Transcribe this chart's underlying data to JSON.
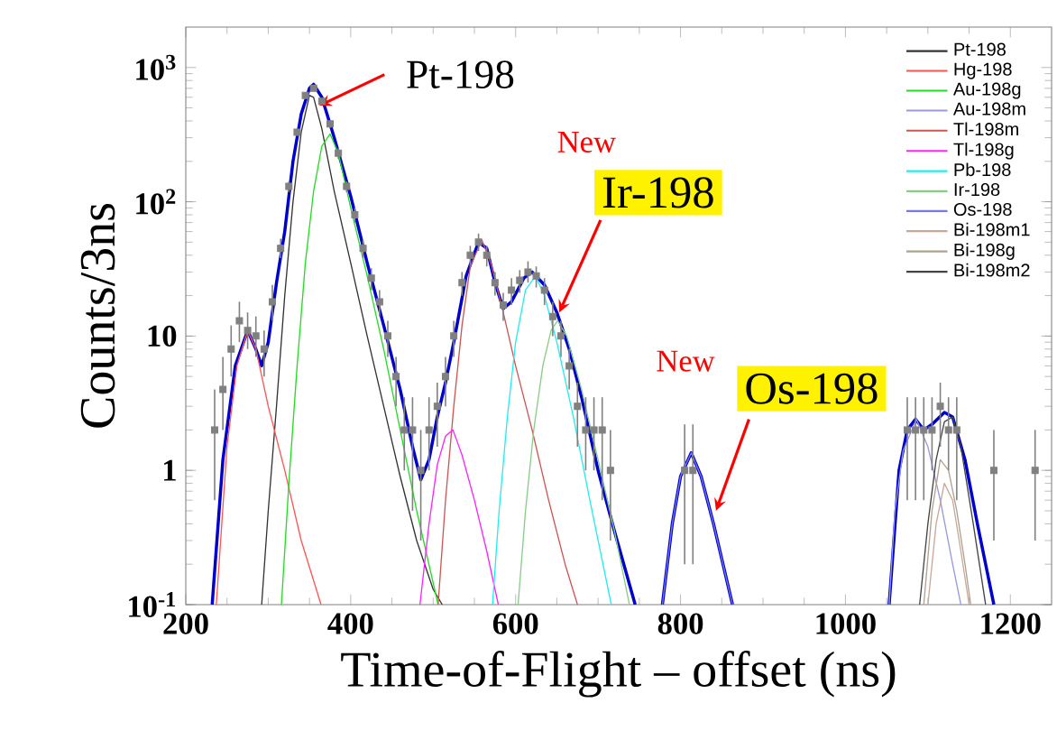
{
  "chart_data": {
    "type": "line",
    "xlabel": "Time-of-Flight – offset (ns)",
    "ylabel": "Counts/3ns",
    "log": "y",
    "xlim": [
      200,
      1250
    ],
    "ylim": [
      0.1,
      2000
    ],
    "xticks": [
      200,
      400,
      600,
      800,
      1000,
      1200
    ],
    "yticks": [
      {
        "value": 0.1,
        "label": "10$^{-1}$"
      },
      1,
      10,
      {
        "value": 100,
        "label": "10$^{2}$"
      },
      {
        "value": 1000,
        "label": "10$^{3}$"
      }
    ],
    "legend": "top right",
    "annotations": [
      {
        "text": "Pt-198",
        "x": 362,
        "y": 520
      },
      "New",
      {
        "text": "Ir-198",
        "x": 653,
        "y": 15
      },
      "New",
      {
        "text": "Os-198",
        "x": 843,
        "y": 0.5
      }
    ],
    "series": [
      {
        "color": "#0000cc",
        "x": [
          232,
          245,
          260,
          275,
          285,
          292,
          300,
          310,
          320,
          330,
          340,
          350,
          355,
          365,
          380,
          400,
          420,
          440,
          460,
          475,
          485,
          495,
          505,
          515,
          525,
          540,
          555,
          565,
          575,
          585,
          595,
          610,
          620,
          635,
          650,
          665,
          680,
          700,
          720,
          745,
          760,
          778,
          790,
          800,
          813,
          825,
          840,
          863,
          900,
          1053,
          1065,
          1075,
          1085,
          1095,
          1105,
          1120,
          1130,
          1145,
          1160,
          1180
        ],
        "values": [
          0.1,
          1.2,
          6,
          11,
          8,
          6,
          9,
          25,
          60,
          200,
          450,
          700,
          750,
          600,
          300,
          110,
          35,
          12,
          4,
          1.5,
          0.85,
          1.2,
          2.5,
          4.5,
          9,
          28,
          50,
          45,
          25,
          16,
          18,
          27,
          30,
          24,
          15,
          8,
          3.5,
          1,
          0.35,
          0.1,
          null,
          0.1,
          0.4,
          0.9,
          1.35,
          0.9,
          0.4,
          0.1,
          null,
          0.1,
          1,
          2,
          2.4,
          2,
          2.2,
          2.7,
          2.5,
          1.2,
          0.4,
          0.1
        ]
      },
      {
        "name": "Pt-198",
        "color": "#333333",
        "x": [
          292,
          300,
          310,
          320,
          330,
          340,
          350,
          355,
          365,
          380,
          400,
          420,
          440,
          460,
          480,
          500,
          511
        ],
        "values": [
          0.1,
          0.5,
          3,
          20,
          100,
          330,
          620,
          600,
          350,
          120,
          35,
          10,
          3,
          0.9,
          0.3,
          0.13,
          0.1
        ]
      },
      {
        "name": "Hg-198",
        "color": "#ff5555",
        "x": [
          237,
          250,
          262,
          275,
          285,
          300,
          320,
          340,
          364
        ],
        "values": [
          0.1,
          1.5,
          6,
          11,
          8,
          3,
          1,
          0.3,
          0.1
        ]
      },
      {
        "name": "Au-198g",
        "color": "#22dd22",
        "x": [
          316,
          325,
          335,
          345,
          355,
          365,
          375,
          385,
          400,
          420,
          440,
          460,
          480,
          506
        ],
        "values": [
          0.1,
          0.8,
          6,
          35,
          120,
          260,
          320,
          230,
          90,
          28,
          8,
          2,
          0.5,
          0.1
        ]
      },
      {
        "name": "Au-198m",
        "color": "#9999dd",
        "x": [
          1053,
          1060,
          1070,
          1086,
          1100,
          1115,
          1130,
          1140
        ],
        "values": [
          0.1,
          0.5,
          1.4,
          2.4,
          1.5,
          0.6,
          0.2,
          0.1
        ]
      },
      {
        "name": "Tl-198m",
        "color": "#cc5555",
        "x": [
          506,
          515,
          525,
          535,
          545,
          559,
          570,
          585,
          600,
          620,
          640,
          660,
          675
        ],
        "values": [
          0.1,
          0.6,
          3,
          12,
          33,
          52,
          35,
          15,
          6,
          2,
          0.6,
          0.2,
          0.1
        ]
      },
      {
        "name": "Tl-198g",
        "color": "#ff22ff",
        "x": [
          484,
          495,
          505,
          515,
          524,
          535,
          550,
          565,
          579
        ],
        "values": [
          0.1,
          0.4,
          1.1,
          1.8,
          2,
          1.3,
          0.6,
          0.25,
          0.1
        ]
      },
      {
        "name": "Pb-198",
        "color": "#22eeee",
        "x": [
          572,
          580,
          590,
          600,
          612,
          624,
          635,
          650,
          670,
          690,
          716
        ],
        "values": [
          0.1,
          0.5,
          2.5,
          9,
          22,
          28,
          20,
          9,
          2.5,
          0.6,
          0.1
        ]
      },
      {
        "name": "Ir-198",
        "color": "#88cc88",
        "x": [
          603,
          612,
          622,
          633,
          643,
          651,
          662,
          680,
          700,
          720,
          738
        ],
        "values": [
          0.1,
          0.5,
          2,
          6,
          11,
          13,
          10,
          4,
          1.2,
          0.35,
          0.1
        ]
      },
      {
        "name": "Os-198",
        "color": "#7777ee",
        "x": [
          778,
          790,
          800,
          813,
          825,
          840,
          863
        ],
        "values": [
          0.1,
          0.4,
          0.9,
          1.35,
          0.9,
          0.4,
          0.1
        ]
      },
      {
        "name": "Bi-198m1",
        "color": "#c8a898",
        "x": [
          1100,
          1110,
          1120,
          1130,
          1140,
          1150
        ],
        "values": [
          0.1,
          0.4,
          0.8,
          0.6,
          0.25,
          0.1
        ]
      },
      {
        "name": "Bi-198g",
        "color": "#b0a090",
        "x": [
          1095,
          1105,
          1115,
          1125,
          1135,
          1145,
          1152
        ],
        "values": [
          0.1,
          0.5,
          1.2,
          1,
          0.5,
          0.2,
          0.1
        ]
      },
      {
        "name": "Bi-198m2",
        "color": "#444444",
        "x": [
          1090,
          1100,
          1110,
          1120,
          1130,
          1140,
          1155,
          1170
        ],
        "values": [
          0.1,
          0.4,
          1.2,
          2.3,
          2.5,
          1.5,
          0.4,
          0.1
        ]
      },
      {
        "type": "scatter",
        "marker": "square",
        "color": "#808080",
        "x": [
          235,
          245,
          255,
          265,
          275,
          285,
          295,
          305,
          315,
          325,
          335,
          345,
          355,
          365,
          375,
          385,
          395,
          405,
          415,
          425,
          435,
          445,
          455,
          465,
          475,
          485,
          495,
          505,
          515,
          525,
          535,
          545,
          555,
          565,
          575,
          585,
          595,
          605,
          615,
          625,
          635,
          645,
          655,
          665,
          675,
          685,
          695,
          705,
          715,
          805,
          815,
          1075,
          1085,
          1095,
          1105,
          1115,
          1125,
          1135,
          1180,
          1230
        ],
        "values": [
          2,
          4,
          8,
          13,
          11,
          10,
          8,
          18,
          45,
          130,
          330,
          620,
          700,
          560,
          380,
          230,
          130,
          80,
          45,
          27,
          18,
          10,
          5,
          2,
          2,
          1,
          2,
          3,
          5,
          10,
          25,
          40,
          50,
          40,
          25,
          17,
          22,
          26,
          30,
          28,
          22,
          14,
          10,
          6,
          3,
          2,
          2,
          2,
          1,
          1,
          1,
          2,
          2,
          2,
          2,
          3,
          2,
          2,
          1,
          1
        ],
        "errors": [
          [
            0.6,
            4
          ],
          [
            2,
            7
          ],
          [
            5,
            12
          ],
          [
            9,
            18
          ],
          [
            8,
            15
          ],
          [
            7,
            14
          ],
          [
            5,
            11
          ],
          [
            13,
            24
          ],
          [
            38,
            53
          ],
          [
            118,
            142
          ],
          [
            310,
            350
          ],
          [
            590,
            650
          ],
          [
            670,
            730
          ],
          [
            530,
            590
          ],
          [
            355,
            405
          ],
          [
            210,
            250
          ],
          [
            118,
            142
          ],
          [
            70,
            90
          ],
          [
            38,
            52
          ],
          [
            22,
            32
          ],
          [
            14,
            22
          ],
          [
            7,
            13
          ],
          [
            3,
            7
          ],
          [
            1,
            3.5
          ],
          [
            0.5,
            3.5
          ],
          [
            0.3,
            2
          ],
          [
            1,
            3.5
          ],
          [
            1.5,
            4.5
          ],
          [
            3,
            7
          ],
          [
            7,
            13
          ],
          [
            20,
            30
          ],
          [
            33,
            47
          ],
          [
            43,
            58
          ],
          [
            33,
            47
          ],
          [
            20,
            30
          ],
          [
            13,
            21
          ],
          [
            17,
            27
          ],
          [
            21,
            31
          ],
          [
            25,
            36
          ],
          [
            23,
            33
          ],
          [
            17,
            27
          ],
          [
            10,
            18
          ],
          [
            7,
            13
          ],
          [
            4,
            8
          ],
          [
            1.5,
            4.5
          ],
          [
            1,
            3.5
          ],
          [
            1,
            3.5
          ],
          [
            0.6,
            3.5
          ],
          [
            0.3,
            2
          ],
          [
            0.2,
            2.2
          ],
          [
            0.2,
            2.2
          ],
          [
            0.6,
            3.5
          ],
          [
            0.6,
            3.5
          ],
          [
            0.6,
            3.5
          ],
          [
            1,
            3.5
          ],
          [
            1.5,
            4.5
          ],
          [
            1,
            3.5
          ],
          [
            0.6,
            3.5
          ],
          [
            0.3,
            2
          ],
          [
            0.3,
            2
          ]
        ]
      }
    ]
  }
}
